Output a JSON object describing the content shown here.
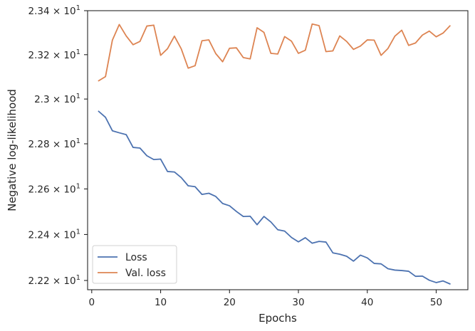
{
  "chart_data": {
    "type": "line",
    "title": "",
    "xlabel": "Epochs",
    "ylabel": "Negative log-likelihood",
    "xlim": [
      -0.6,
      54.6
    ],
    "ylim": [
      22.16,
      23.4
    ],
    "yscale": "log",
    "grid": false,
    "legend_position": "lower-left",
    "x_ticks": [
      {
        "value": 0,
        "label": "0"
      },
      {
        "value": 10,
        "label": "10"
      },
      {
        "value": 20,
        "label": "20"
      },
      {
        "value": 30,
        "label": "30"
      },
      {
        "value": 40,
        "label": "40"
      },
      {
        "value": 50,
        "label": "50"
      }
    ],
    "y_ticks": [
      {
        "value": 22.2,
        "mantissa": "2.22",
        "times": "×",
        "base": "10",
        "exp": "1"
      },
      {
        "value": 22.4,
        "mantissa": "2.24",
        "times": "×",
        "base": "10",
        "exp": "1"
      },
      {
        "value": 22.6,
        "mantissa": "2.26",
        "times": "×",
        "base": "10",
        "exp": "1"
      },
      {
        "value": 22.8,
        "mantissa": "2.28",
        "times": "×",
        "base": "10",
        "exp": "1"
      },
      {
        "value": 23.0,
        "mantissa": "2.3",
        "times": "×",
        "base": "10",
        "exp": "1"
      },
      {
        "value": 23.2,
        "mantissa": "2.32",
        "times": "×",
        "base": "10",
        "exp": "1"
      },
      {
        "value": 23.4,
        "mantissa": "2.34",
        "times": "×",
        "base": "10",
        "exp": "1"
      }
    ],
    "x": [
      1,
      2,
      3,
      4,
      5,
      6,
      7,
      8,
      9,
      10,
      11,
      12,
      13,
      14,
      15,
      16,
      17,
      18,
      19,
      20,
      21,
      22,
      23,
      24,
      25,
      26,
      27,
      28,
      29,
      30,
      31,
      32,
      33,
      34,
      35,
      36,
      37,
      38,
      39,
      40,
      41,
      42,
      43,
      44,
      45,
      46,
      47,
      48,
      49,
      50,
      51,
      52
    ],
    "series": [
      {
        "name": "Loss",
        "color": "#4c72b0",
        "values": [
          22.945,
          22.918,
          22.858,
          22.849,
          22.841,
          22.784,
          22.781,
          22.747,
          22.73,
          22.732,
          22.677,
          22.675,
          22.65,
          22.614,
          22.61,
          22.576,
          22.581,
          22.567,
          22.536,
          22.526,
          22.501,
          22.479,
          22.48,
          22.443,
          22.479,
          22.455,
          22.421,
          22.415,
          22.387,
          22.368,
          22.386,
          22.362,
          22.37,
          22.367,
          22.32,
          22.314,
          22.305,
          22.284,
          22.31,
          22.298,
          22.274,
          22.272,
          22.251,
          22.245,
          22.243,
          22.24,
          22.218,
          22.219,
          22.201,
          22.191,
          22.198,
          22.185
        ]
      },
      {
        "name": "Val. loss",
        "color": "#dd8452",
        "values": [
          23.082,
          23.101,
          23.266,
          23.337,
          23.285,
          23.245,
          23.26,
          23.33,
          23.334,
          23.197,
          23.227,
          23.284,
          23.226,
          23.139,
          23.15,
          23.263,
          23.267,
          23.205,
          23.168,
          23.229,
          23.231,
          23.187,
          23.181,
          23.322,
          23.301,
          23.206,
          23.203,
          23.282,
          23.261,
          23.206,
          23.22,
          23.339,
          23.332,
          23.214,
          23.217,
          23.285,
          23.26,
          23.224,
          23.239,
          23.267,
          23.266,
          23.197,
          23.228,
          23.284,
          23.311,
          23.242,
          23.253,
          23.289,
          23.307,
          23.281,
          23.298,
          23.331
        ]
      }
    ]
  }
}
